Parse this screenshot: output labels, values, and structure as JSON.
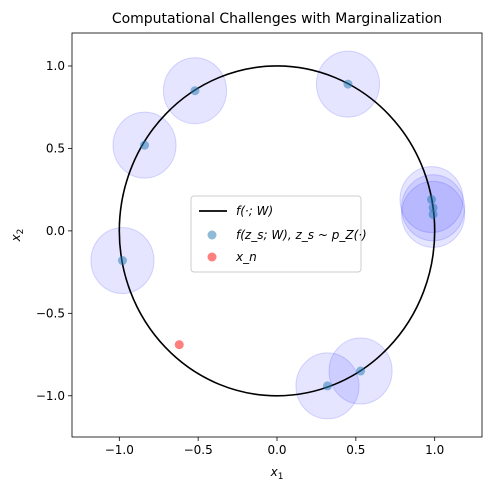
{
  "chart_data": {
    "type": "scatter",
    "title": "Computational Challenges with Marginalization",
    "xlabel": "x",
    "xlabel_sub": "1",
    "ylabel": "x",
    "ylabel_sub": "2",
    "xlim": [
      -1.3,
      1.3
    ],
    "ylim": [
      -1.25,
      1.2
    ],
    "xticks": [
      -1.0,
      -0.5,
      0.0,
      0.5,
      1.0
    ],
    "xtick_labels": [
      "−1.0",
      "−0.5",
      "0.0",
      "0.5",
      "1.0"
    ],
    "yticks": [
      -1.0,
      -0.5,
      0.0,
      0.5,
      1.0
    ],
    "ytick_labels": [
      "−1.0",
      "−0.5",
      "0.0",
      "0.5",
      "1.0"
    ],
    "grid": false,
    "legend_position": "center",
    "series": [
      {
        "name": "f(·; W)",
        "kind": "curve",
        "shape": "unit circle",
        "center": [
          0,
          0
        ],
        "radius": 1,
        "color": "#000000"
      },
      {
        "name": "f(z_s; W), z_s ~ p_Z(·)",
        "kind": "points",
        "color": "#1f77b4",
        "points": [
          {
            "x": -0.52,
            "y": 0.85
          },
          {
            "x": 0.45,
            "y": 0.89
          },
          {
            "x": -0.84,
            "y": 0.52
          },
          {
            "x": -0.98,
            "y": -0.18
          },
          {
            "x": 0.98,
            "y": 0.19
          },
          {
            "x": 0.99,
            "y": 0.14
          },
          {
            "x": 0.99,
            "y": 0.1
          },
          {
            "x": 0.53,
            "y": -0.85
          },
          {
            "x": 0.32,
            "y": -0.94
          }
        ],
        "halo_radius": 0.2,
        "halo_color": "#0000ff"
      },
      {
        "name": "x_n",
        "kind": "points",
        "color": "#ff0000",
        "points": [
          {
            "x": -0.62,
            "y": -0.69
          }
        ]
      }
    ]
  }
}
